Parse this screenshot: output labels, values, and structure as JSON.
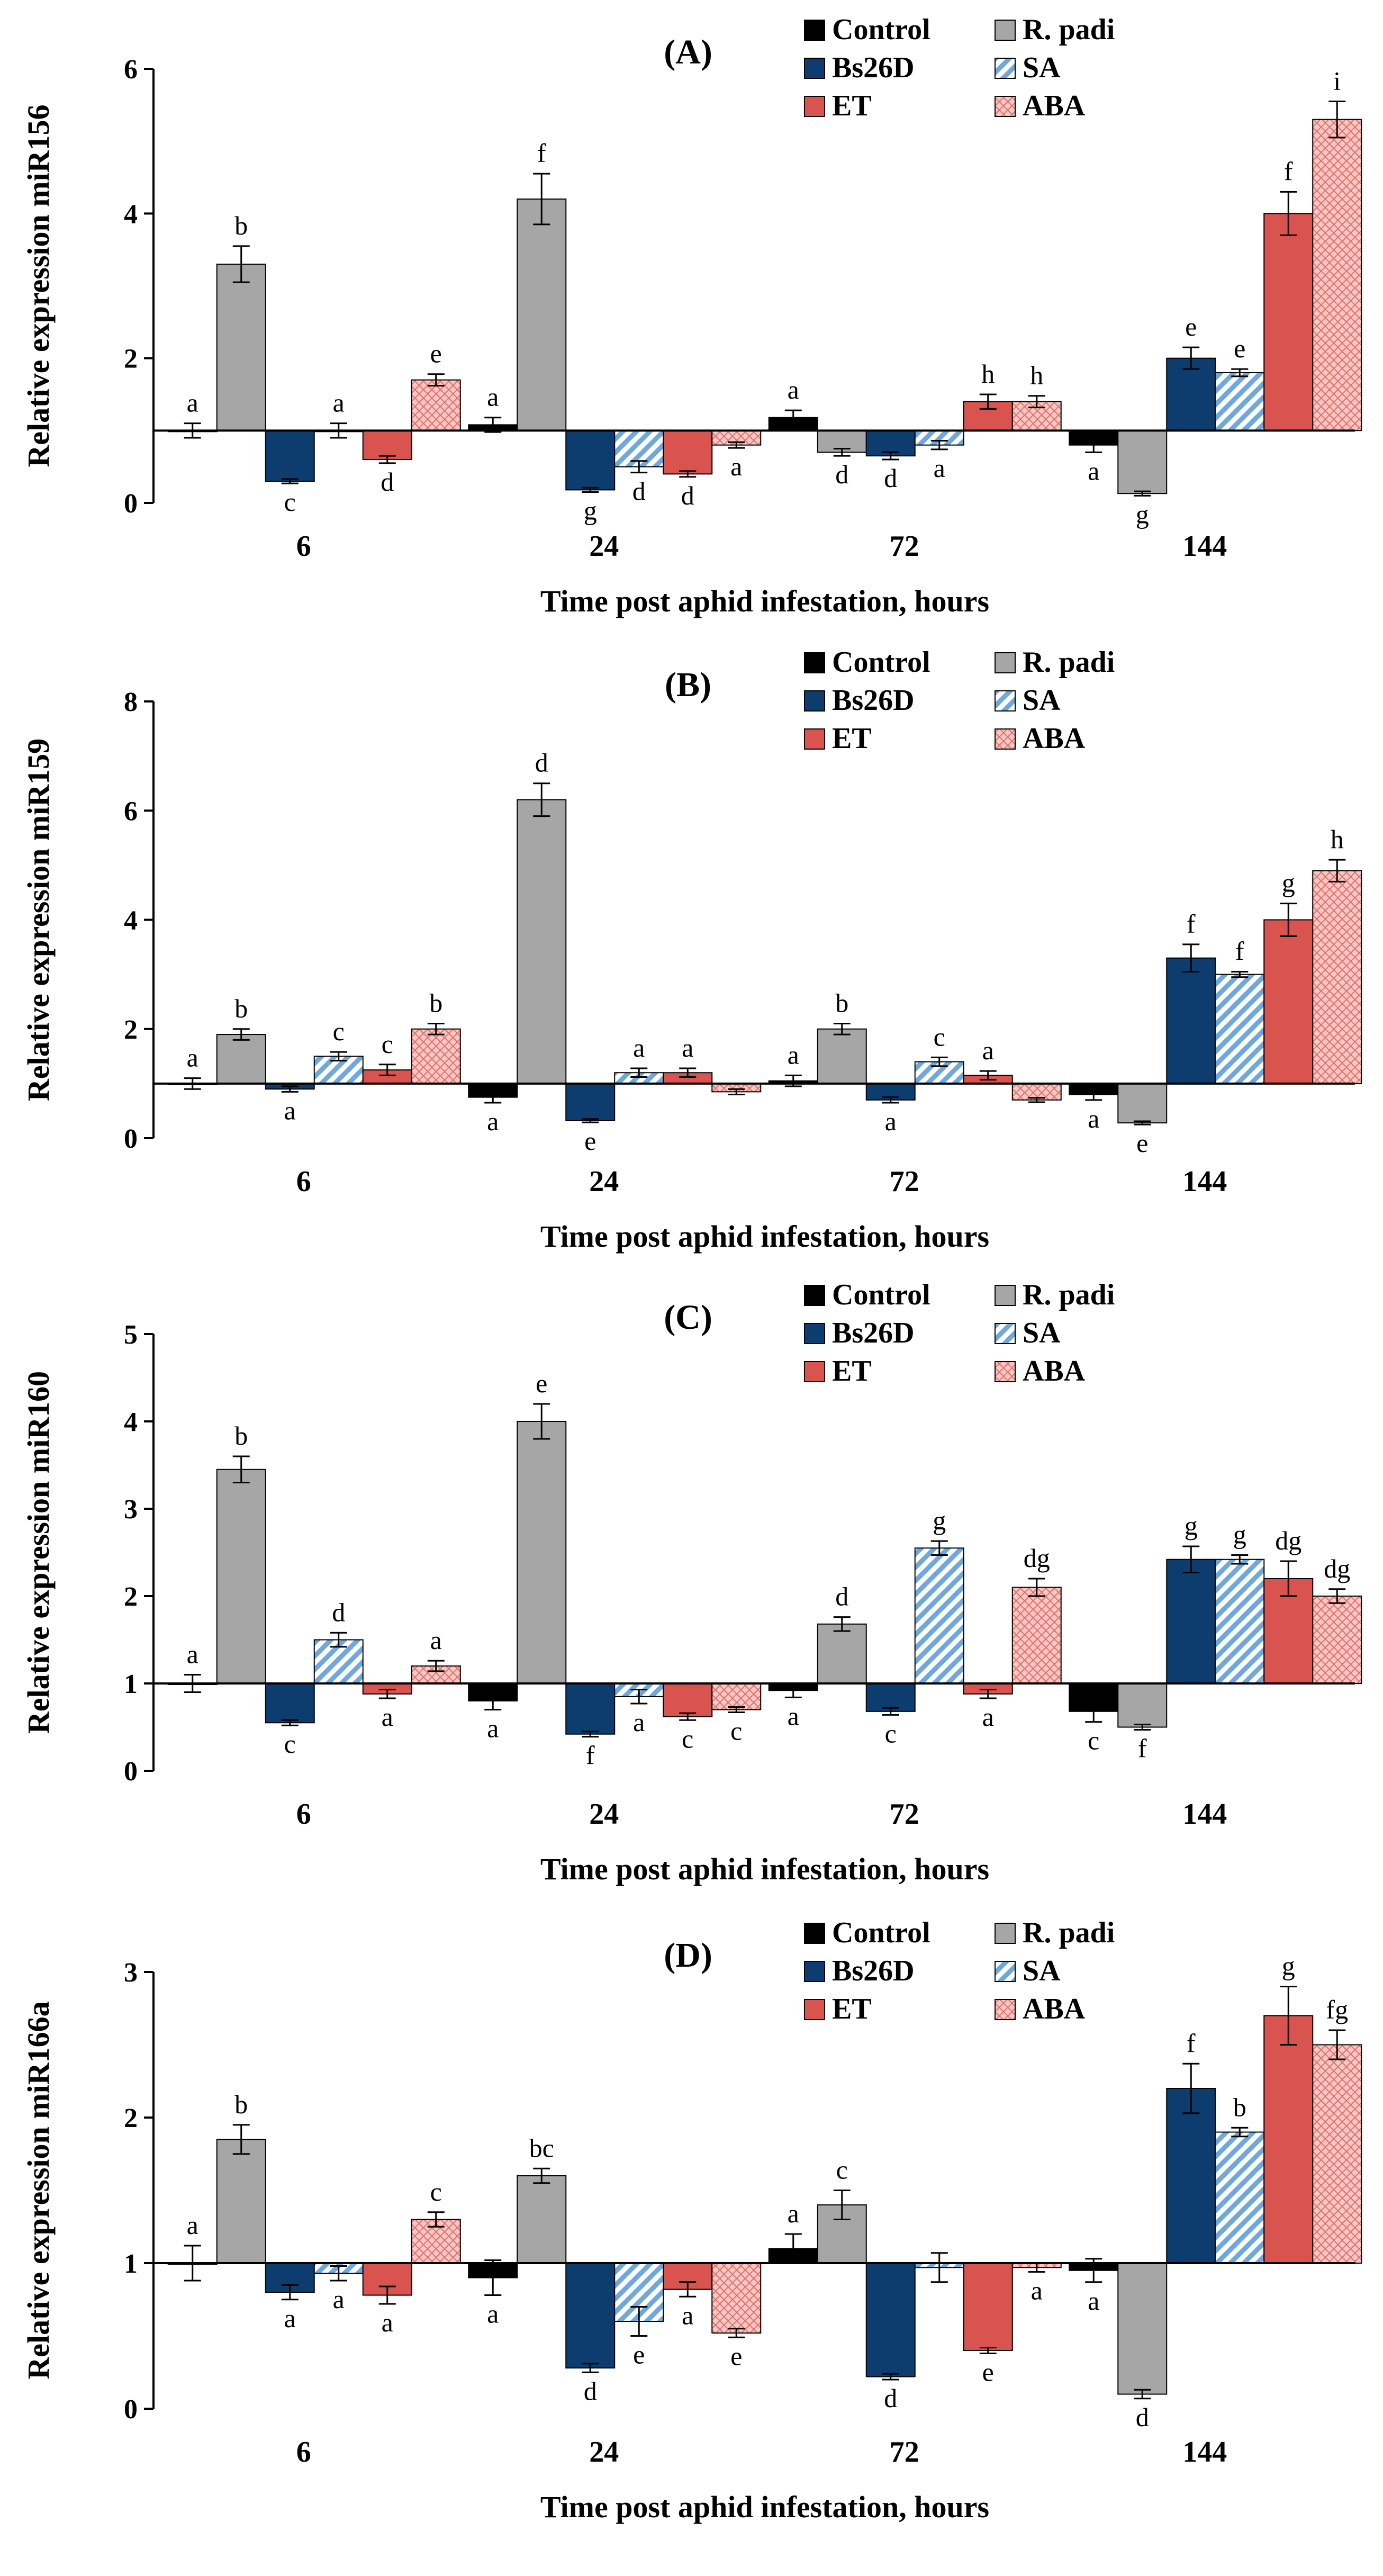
{
  "chart_data": [
    {
      "type": "bar",
      "title": "(A)",
      "ylabel": "Relative expression miR156",
      "xlabel": "Time post aphid infestation, hours",
      "categories": [
        "6",
        "24",
        "72",
        "144"
      ],
      "baseline": 1,
      "ylim": [
        0,
        6
      ],
      "yticks": [
        0,
        2,
        4,
        6
      ],
      "series": [
        {
          "name": "Control",
          "values": [
            1.0,
            1.08,
            1.18,
            0.8
          ],
          "errors": [
            0.1,
            0.1,
            0.1,
            0.1
          ],
          "letters": [
            "a",
            "a",
            "a",
            "a"
          ]
        },
        {
          "name": "R. padi",
          "values": [
            3.3,
            4.2,
            0.7,
            0.13
          ],
          "errors": [
            0.25,
            0.35,
            0.05,
            0.03
          ],
          "letters": [
            "b",
            "f",
            "d",
            "g"
          ]
        },
        {
          "name": "Bs26D",
          "values": [
            0.3,
            0.18,
            0.65,
            2.0
          ],
          "errors": [
            0.03,
            0.03,
            0.05,
            0.15
          ],
          "letters": [
            "c",
            "g",
            "d",
            "e"
          ]
        },
        {
          "name": "SA",
          "values": [
            1.0,
            0.5,
            0.8,
            1.8
          ],
          "errors": [
            0.1,
            0.08,
            0.06,
            0.05
          ],
          "letters": [
            "a",
            "d",
            "a",
            "e"
          ]
        },
        {
          "name": "ET",
          "values": [
            0.6,
            0.4,
            1.4,
            4.0
          ],
          "errors": [
            0.05,
            0.04,
            0.1,
            0.3
          ],
          "letters": [
            "d",
            "d",
            "h",
            "f"
          ]
        },
        {
          "name": "ABA",
          "values": [
            1.7,
            0.8,
            1.4,
            5.3
          ],
          "errors": [
            0.08,
            0.04,
            0.08,
            0.25
          ],
          "letters": [
            "e",
            "a",
            "h",
            "i"
          ]
        }
      ]
    },
    {
      "type": "bar",
      "title": "(B)",
      "ylabel": "Relative expression miR159",
      "xlabel": "Time post aphid infestation, hours",
      "categories": [
        "6",
        "24",
        "72",
        "144"
      ],
      "baseline": 1,
      "ylim": [
        0,
        8
      ],
      "yticks": [
        0,
        2,
        4,
        6,
        8
      ],
      "series": [
        {
          "name": "Control",
          "values": [
            1.0,
            0.75,
            1.05,
            0.8
          ],
          "errors": [
            0.1,
            0.1,
            0.1,
            0.1
          ],
          "letters": [
            "a",
            "a",
            "a",
            "a"
          ]
        },
        {
          "name": "R. padi",
          "values": [
            1.9,
            6.2,
            2.0,
            0.28
          ],
          "errors": [
            0.1,
            0.3,
            0.1,
            0.03
          ],
          "letters": [
            "b",
            "d",
            "b",
            "e"
          ]
        },
        {
          "name": "Bs26D",
          "values": [
            0.9,
            0.32,
            0.7,
            3.3
          ],
          "errors": [
            0.05,
            0.03,
            0.05,
            0.25
          ],
          "letters": [
            "a",
            "e",
            "a",
            "f"
          ]
        },
        {
          "name": "SA",
          "values": [
            1.5,
            1.2,
            1.4,
            3.0
          ],
          "errors": [
            0.08,
            0.08,
            0.08,
            0.05
          ],
          "letters": [
            "c",
            "a",
            "c",
            "f"
          ]
        },
        {
          "name": "ET",
          "values": [
            1.25,
            1.2,
            1.15,
            4.0
          ],
          "errors": [
            0.1,
            0.08,
            0.08,
            0.3
          ],
          "letters": [
            "c",
            "a",
            "a",
            "g"
          ]
        },
        {
          "name": "ABA",
          "values": [
            2.0,
            0.85,
            0.7,
            4.9
          ],
          "errors": [
            0.1,
            0.05,
            0.04,
            0.2
          ],
          "letters": [
            "b",
            "",
            "",
            "h"
          ]
        }
      ]
    },
    {
      "type": "bar",
      "title": "(C)",
      "ylabel": "Relative expression miR160",
      "xlabel": "Time post aphid infestation, hours",
      "categories": [
        "6",
        "24",
        "72",
        "144"
      ],
      "baseline": 1,
      "ylim": [
        0,
        5
      ],
      "yticks": [
        0,
        1,
        2,
        3,
        4,
        5
      ],
      "series": [
        {
          "name": "Control",
          "values": [
            1.0,
            0.8,
            0.92,
            0.68
          ],
          "errors": [
            0.1,
            0.1,
            0.08,
            0.12
          ],
          "letters": [
            "a",
            "a",
            "a",
            "c"
          ]
        },
        {
          "name": "R. padi",
          "values": [
            3.45,
            4.0,
            1.68,
            0.5
          ],
          "errors": [
            0.15,
            0.2,
            0.08,
            0.03
          ],
          "letters": [
            "b",
            "e",
            "d",
            "f"
          ]
        },
        {
          "name": "Bs26D",
          "values": [
            0.55,
            0.42,
            0.68,
            2.42
          ],
          "errors": [
            0.03,
            0.03,
            0.04,
            0.15
          ],
          "letters": [
            "c",
            "f",
            "c",
            "g"
          ]
        },
        {
          "name": "SA",
          "values": [
            1.5,
            0.85,
            2.55,
            2.42
          ],
          "errors": [
            0.08,
            0.08,
            0.08,
            0.05
          ],
          "letters": [
            "d",
            "a",
            "g",
            "g"
          ]
        },
        {
          "name": "ET",
          "values": [
            0.88,
            0.62,
            0.88,
            2.2
          ],
          "errors": [
            0.05,
            0.04,
            0.05,
            0.2
          ],
          "letters": [
            "a",
            "c",
            "a",
            "dg"
          ]
        },
        {
          "name": "ABA",
          "values": [
            1.2,
            0.7,
            2.1,
            2.0
          ],
          "errors": [
            0.06,
            0.03,
            0.1,
            0.08
          ],
          "letters": [
            "a",
            "c",
            "dg",
            "dg"
          ]
        }
      ]
    },
    {
      "type": "bar",
      "title": "(D)",
      "ylabel": "Relative expression miR166a",
      "xlabel": "Time post aphid infestation, hours",
      "categories": [
        "6",
        "24",
        "72",
        "144"
      ],
      "baseline": 1,
      "ylim": [
        0,
        3
      ],
      "yticks": [
        0,
        1,
        2,
        3
      ],
      "series": [
        {
          "name": "Control",
          "values": [
            1.0,
            0.9,
            1.1,
            0.95
          ],
          "errors": [
            0.12,
            0.12,
            0.1,
            0.08
          ],
          "letters": [
            "a",
            "a",
            "a",
            "a"
          ]
        },
        {
          "name": "R. padi",
          "values": [
            1.85,
            1.6,
            1.4,
            0.1
          ],
          "errors": [
            0.1,
            0.05,
            0.1,
            0.03
          ],
          "letters": [
            "b",
            "bc",
            "c",
            "d"
          ]
        },
        {
          "name": "Bs26D",
          "values": [
            0.8,
            0.28,
            0.22,
            2.2
          ],
          "errors": [
            0.05,
            0.03,
            0.02,
            0.17
          ],
          "letters": [
            "a",
            "d",
            "d",
            "f"
          ]
        },
        {
          "name": "SA",
          "values": [
            0.93,
            0.6,
            0.97,
            1.9
          ],
          "errors": [
            0.05,
            0.1,
            0.1,
            0.03
          ],
          "letters": [
            "a",
            "e",
            "",
            "b"
          ]
        },
        {
          "name": "ET",
          "values": [
            0.78,
            0.82,
            0.4,
            2.7
          ],
          "errors": [
            0.06,
            0.05,
            0.02,
            0.2
          ],
          "letters": [
            "a",
            "a",
            "e",
            "g"
          ]
        },
        {
          "name": "ABA",
          "values": [
            1.3,
            0.52,
            0.97,
            2.5
          ],
          "errors": [
            0.05,
            0.03,
            0.03,
            0.1
          ],
          "letters": [
            "c",
            "e",
            "a",
            "fg"
          ]
        }
      ]
    }
  ],
  "legend": {
    "items": [
      "Control",
      "R. padi",
      "Bs26D",
      "SA",
      "ET",
      "ABA"
    ]
  },
  "colors": {
    "Control": "#000000",
    "R. padi": "#a6a6a6",
    "Bs26D": "#0d3c6e",
    "SA": "#6ea8dc",
    "ET": "#d9534f",
    "ABA": "#f4a7a3"
  }
}
